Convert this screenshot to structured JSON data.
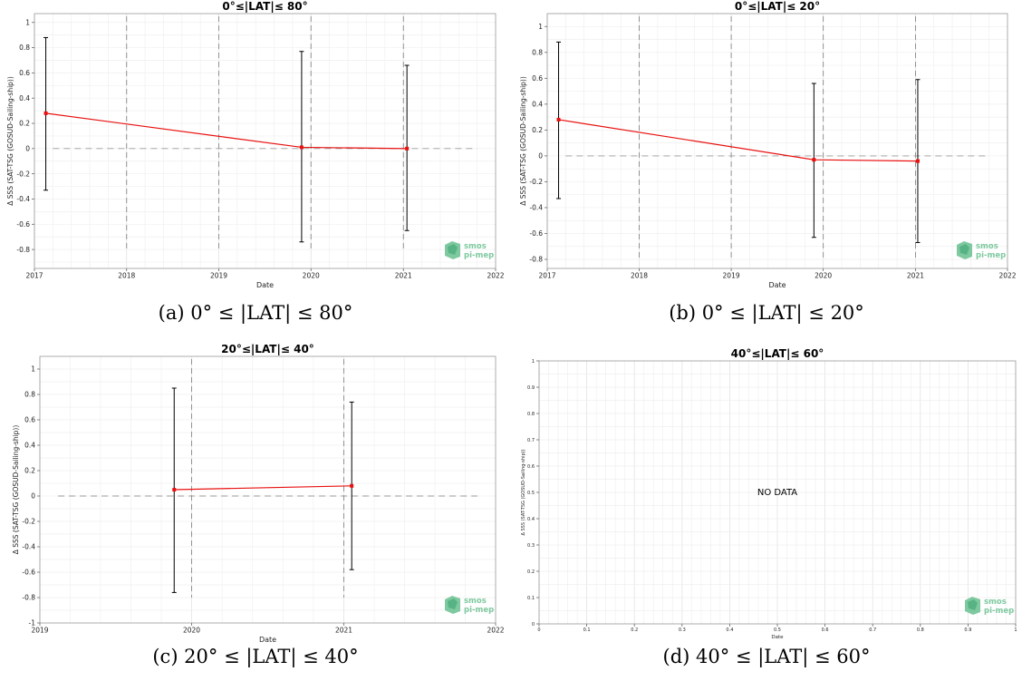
{
  "chart_data": [
    {
      "type": "line",
      "title": "0°≤|LAT|≤ 80°",
      "xlabel": "Date",
      "ylabel": "Δ SSS (SAT-TSG (GOSUD-Sailing-ship))",
      "x_ticks": [
        "2017",
        "2018",
        "2019",
        "2020",
        "2021",
        "2022"
      ],
      "y_ticks": [
        "-0.8",
        "-0.6",
        "-0.4",
        "-0.2",
        "0",
        "0.2",
        "0.4",
        "0.6",
        "0.8",
        "1"
      ],
      "xlim": [
        "2017-01-01",
        "2022-01-01"
      ],
      "ylim": [
        -0.95,
        1.07
      ],
      "reference_line": 0,
      "vertical_lines": [
        "2018-01-01",
        "2019-01-01",
        "2020-01-01",
        "2021-01-01"
      ],
      "series": [
        {
          "values": [
            {
              "x": "2017-02-15",
              "y": 0.28,
              "low": -0.33,
              "high": 0.88
            },
            {
              "x": "2019-11-25",
              "y": 0.01,
              "low": -0.74,
              "high": 0.77
            },
            {
              "x": "2021-01-15",
              "y": 0.0,
              "low": -0.65,
              "high": 0.66
            }
          ]
        }
      ],
      "grid": true,
      "caption": "(a) 0° ≤ |LAT| ≤ 80°",
      "logo": "smos pi-mep"
    },
    {
      "type": "line",
      "title": "0°≤|LAT|≤ 20°",
      "xlabel": "Date",
      "ylabel": "Δ SSS (SAT-TSG (GOSUD-Sailing-ship))",
      "x_ticks": [
        "2017",
        "2018",
        "2019",
        "2020",
        "2021",
        "2022"
      ],
      "y_ticks": [
        "-0.8",
        "-0.6",
        "-0.4",
        "-0.2",
        "0",
        "0.2",
        "0.4",
        "0.6",
        "0.8",
        "1"
      ],
      "xlim": [
        "2017-01-01",
        "2022-01-01"
      ],
      "ylim": [
        -0.87,
        1.1
      ],
      "reference_line": 0,
      "vertical_lines": [
        "2018-01-01",
        "2019-01-01",
        "2020-01-01",
        "2021-01-01"
      ],
      "series": [
        {
          "values": [
            {
              "x": "2017-02-15",
              "y": 0.28,
              "low": -0.33,
              "high": 0.88
            },
            {
              "x": "2019-11-25",
              "y": -0.03,
              "low": -0.63,
              "high": 0.56
            },
            {
              "x": "2021-01-10",
              "y": -0.04,
              "low": -0.67,
              "high": 0.59
            }
          ]
        }
      ],
      "grid": true,
      "caption": "(b) 0° ≤ |LAT| ≤ 20°",
      "logo": "smos pi-mep"
    },
    {
      "type": "line",
      "title": "20°≤|LAT|≤ 40°",
      "xlabel": "Date",
      "ylabel": "Δ SSS (SAT-TSG (GOSUD-Sailing-ship))",
      "x_ticks": [
        "2019",
        "2020",
        "2021",
        "2022"
      ],
      "y_ticks": [
        "-1",
        "-0.8",
        "-0.6",
        "-0.4",
        "-0.2",
        "0",
        "0.2",
        "0.4",
        "0.6",
        "0.8",
        "1"
      ],
      "xlim": [
        "2019-01-01",
        "2022-01-01"
      ],
      "ylim": [
        -1.0,
        1.1
      ],
      "reference_line": 0,
      "vertical_lines": [
        "2020-01-01",
        "2021-01-01"
      ],
      "series": [
        {
          "values": [
            {
              "x": "2019-11-20",
              "y": 0.05,
              "low": -0.76,
              "high": 0.85
            },
            {
              "x": "2021-01-20",
              "y": 0.08,
              "low": -0.58,
              "high": 0.74
            }
          ]
        }
      ],
      "grid": true,
      "caption": "(c) 20° ≤ |LAT| ≤ 40°",
      "logo": "smos pi-mep"
    },
    {
      "type": "line",
      "title": "40°≤|LAT|≤ 60°",
      "xlabel": "Date",
      "ylabel": "Δ SSS (SAT-TSG (GOSUD-Sailing-ship))",
      "x_ticks": [
        "0",
        "0.1",
        "0.2",
        "0.3",
        "0.4",
        "0.5",
        "0.6",
        "0.7",
        "0.8",
        "0.9",
        "1"
      ],
      "y_ticks": [
        "0",
        "0.1",
        "0.2",
        "0.3",
        "0.4",
        "0.5",
        "0.6",
        "0.7",
        "0.8",
        "0.9",
        "1"
      ],
      "xlim": [
        0,
        1
      ],
      "ylim": [
        0,
        1
      ],
      "series": [],
      "no_data_text": "NO DATA",
      "grid": true,
      "caption": "(d) 40° ≤ |LAT| ≤ 60°",
      "logo": "smos pi-mep"
    }
  ]
}
